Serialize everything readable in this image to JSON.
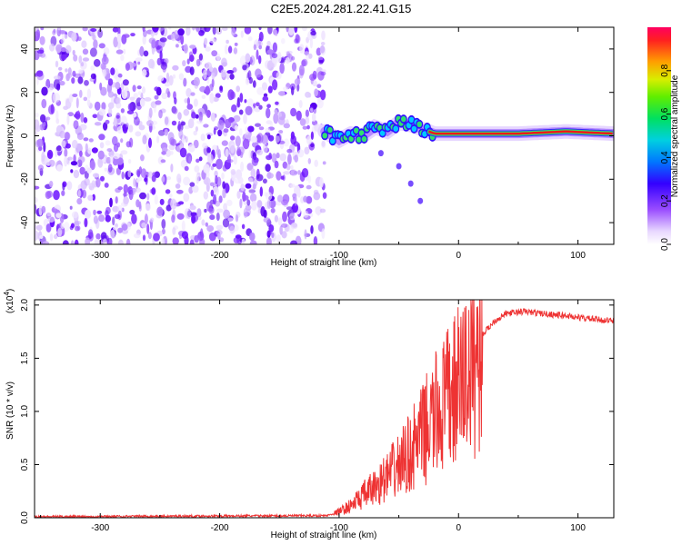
{
  "title": "C2E5.2024.281.22.41.G15",
  "chart_data": [
    {
      "type": "heatmap",
      "xlabel": "Height of straight line (km)",
      "ylabel": "Frequency (Hz)",
      "xlim": [
        -355,
        130
      ],
      "ylim": [
        -50,
        50
      ],
      "xticks": [
        -300,
        -200,
        -100,
        0,
        100
      ],
      "yticks": [
        -40,
        -20,
        0,
        20,
        40
      ],
      "colorbar": {
        "label": "Normalized spectral amplitude",
        "range": [
          0,
          1
        ],
        "ticks": [
          "0.0",
          "0.2",
          "0.4",
          "0.6",
          "0.8"
        ]
      },
      "noise_region_x": [
        -355,
        -112
      ],
      "ridge": [
        {
          "x": -112,
          "y": 2
        },
        {
          "x": -100,
          "y": -2
        },
        {
          "x": -90,
          "y": 1
        },
        {
          "x": -80,
          "y": 0
        },
        {
          "x": -70,
          "y": 4
        },
        {
          "x": -60,
          "y": 2
        },
        {
          "x": -50,
          "y": 6
        },
        {
          "x": -40,
          "y": 5
        },
        {
          "x": -30,
          "y": 3
        },
        {
          "x": -20,
          "y": 1
        },
        {
          "x": 0,
          "y": 1
        },
        {
          "x": 50,
          "y": 1
        },
        {
          "x": 90,
          "y": 2
        },
        {
          "x": 130,
          "y": 1
        }
      ],
      "secondary_trace": [
        {
          "x": -65,
          "y": -8
        },
        {
          "x": -50,
          "y": -14
        },
        {
          "x": -40,
          "y": -22
        },
        {
          "x": -32,
          "y": -30
        }
      ]
    },
    {
      "type": "line",
      "xlabel": "Height of straight line (km)",
      "ylabel": "SNR (10 * v/v)",
      "yscale_label": "(x10",
      "yscale_exp": "4",
      "yscale_close": ")",
      "xlim": [
        -355,
        130
      ],
      "ylim": [
        0,
        2.05
      ],
      "xticks": [
        -300,
        -200,
        -100,
        0,
        100
      ],
      "yticks": [
        "0.0",
        "0.5",
        "1.0",
        "1.5",
        "2.0"
      ],
      "ytick_values": [
        0,
        0.5,
        1.0,
        1.5,
        2.0
      ],
      "color": "#ee3333",
      "envelope": [
        {
          "x": -355,
          "y": 0.01
        },
        {
          "x": -110,
          "y": 0.02
        },
        {
          "x": -100,
          "y": 0.06
        },
        {
          "x": -90,
          "y": 0.12
        },
        {
          "x": -80,
          "y": 0.22
        },
        {
          "x": -70,
          "y": 0.3
        },
        {
          "x": -60,
          "y": 0.4
        },
        {
          "x": -50,
          "y": 0.52
        },
        {
          "x": -40,
          "y": 0.65
        },
        {
          "x": -30,
          "y": 0.82
        },
        {
          "x": -20,
          "y": 1.0
        },
        {
          "x": -10,
          "y": 1.15
        },
        {
          "x": 0,
          "y": 1.3
        },
        {
          "x": 10,
          "y": 1.5
        },
        {
          "x": 20,
          "y": 1.72
        },
        {
          "x": 30,
          "y": 1.85
        },
        {
          "x": 40,
          "y": 1.92
        },
        {
          "x": 55,
          "y": 1.94
        },
        {
          "x": 70,
          "y": 1.92
        },
        {
          "x": 90,
          "y": 1.9
        },
        {
          "x": 110,
          "y": 1.87
        },
        {
          "x": 130,
          "y": 1.85
        }
      ]
    }
  ]
}
